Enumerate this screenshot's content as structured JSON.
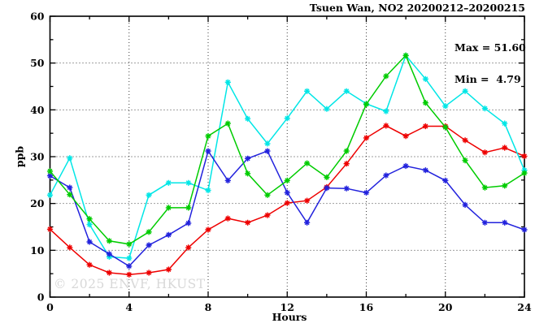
{
  "chart_data": {
    "type": "line",
    "title": "Tsuen Wan, NO2 20200212–20200215",
    "xlabel": "Hours",
    "ylabel": "ppb",
    "xlim": [
      0,
      24
    ],
    "ylim": [
      0,
      60
    ],
    "xticks": [
      0,
      4,
      8,
      12,
      16,
      20,
      24
    ],
    "xminor": [
      2,
      6,
      10,
      14,
      18,
      22
    ],
    "yticks": [
      0,
      10,
      20,
      30,
      40,
      50,
      60
    ],
    "yminor": [
      5,
      15,
      25,
      35,
      45,
      55
    ],
    "x_grid": [
      4,
      8,
      12,
      16,
      20
    ],
    "y_grid": [
      10,
      20,
      30,
      40,
      50
    ],
    "grid_style": "dotted",
    "legend": "none",
    "marker": "asterisk",
    "axis_color": "#000000",
    "x": [
      0,
      1,
      2,
      3,
      4,
      5,
      6,
      7,
      8,
      9,
      10,
      11,
      12,
      13,
      14,
      15,
      16,
      17,
      18,
      19,
      20,
      21,
      22,
      23,
      24
    ],
    "series": [
      {
        "name": "red",
        "color": "#ee0000",
        "values": [
          14.5,
          10.6,
          6.9,
          5.2,
          4.8,
          5.2,
          5.9,
          10.6,
          14.4,
          16.8,
          15.9,
          17.5,
          20.1,
          20.6,
          23.5,
          28.5,
          34.0,
          36.6,
          34.4,
          36.5,
          36.5,
          33.5,
          30.9,
          31.9,
          30.1
        ]
      },
      {
        "name": "cyan",
        "color": "#00e6e6",
        "values": [
          21.8,
          29.7,
          15.5,
          8.6,
          8.3,
          21.8,
          24.4,
          24.4,
          22.8,
          45.9,
          38.1,
          32.8,
          38.2,
          44.0,
          40.2,
          44.0,
          41.3,
          39.7,
          51.6,
          46.6,
          40.8,
          44.0,
          40.3,
          37.1,
          27.1
        ]
      },
      {
        "name": "blue",
        "color": "#2222dd",
        "values": [
          25.9,
          23.4,
          11.8,
          9.2,
          6.6,
          11.1,
          13.3,
          15.8,
          31.2,
          24.9,
          29.6,
          31.2,
          22.3,
          15.9,
          23.3,
          23.2,
          22.3,
          26.0,
          28.0,
          27.1,
          24.9,
          19.7,
          15.9,
          15.9,
          14.4
        ]
      },
      {
        "name": "green",
        "color": "#00cc00",
        "values": [
          26.9,
          21.9,
          16.7,
          12.0,
          11.3,
          13.9,
          19.1,
          19.1,
          34.4,
          37.1,
          26.4,
          21.8,
          24.9,
          28.6,
          25.6,
          31.2,
          41.2,
          47.2,
          51.6,
          41.5,
          36.3,
          29.2,
          23.4,
          23.8,
          26.5
        ]
      }
    ],
    "annotations": {
      "max_label": "Max = 51.60",
      "min_label": "Min =  4.79"
    },
    "watermark": "© 2025 ENVF, HKUST"
  }
}
